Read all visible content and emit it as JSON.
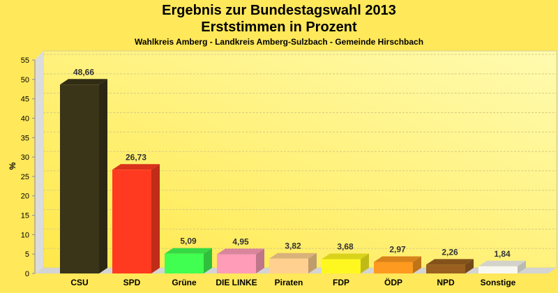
{
  "chart_data": {
    "type": "bar",
    "title": "Ergebnis zur Bundestagswahl 2013",
    "subtitle": "Erststimmen in Prozent",
    "subsubtitle": "Wahlkreis Amberg - Landkreis Amberg-Sulzbach - Gemeinde Hirschbach",
    "xlabel": "",
    "ylabel": "%",
    "ylim": [
      0,
      55
    ],
    "yticks": [
      0,
      5,
      10,
      15,
      20,
      25,
      30,
      35,
      40,
      45,
      50,
      55
    ],
    "grid": true,
    "categories": [
      "CSU",
      "SPD",
      "Grüne",
      "DIE LINKE",
      "Piraten",
      "FDP",
      "ÖDP",
      "NPD",
      "Sonstige"
    ],
    "values": [
      48.66,
      26.73,
      5.09,
      4.95,
      3.82,
      3.68,
      2.97,
      2.26,
      1.84
    ],
    "labels": [
      "48,66",
      "26,73",
      "5,09",
      "4,95",
      "3,82",
      "3,68",
      "2,97",
      "2,26",
      "1,84"
    ],
    "colors": [
      "#3a3418",
      "#ff3a20",
      "#40ff50",
      "#ff9cb8",
      "#ffd090",
      "#fff820",
      "#ff9a20",
      "#9a6020",
      "#f8f8f0"
    ]
  }
}
